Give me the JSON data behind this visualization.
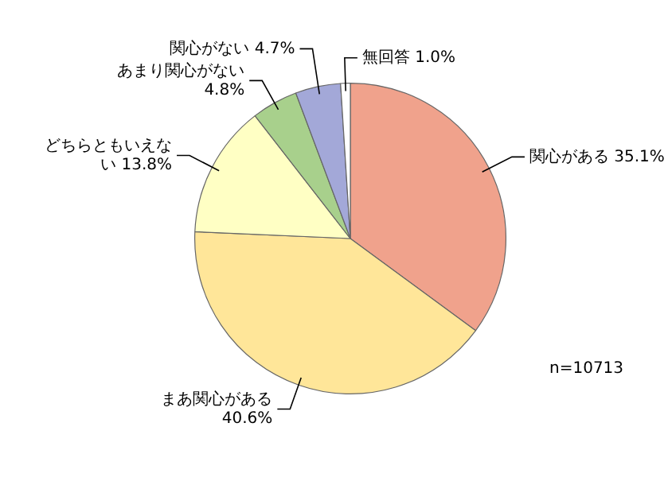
{
  "chart_data": {
    "type": "pie",
    "categories": [
      "関心がある",
      "まあ関心がある",
      "どちらともいえない",
      "あまり関心がない",
      "関心がない",
      "無回答"
    ],
    "values": [
      35.1,
      40.6,
      13.8,
      4.8,
      4.7,
      1.0
    ],
    "value_labels": [
      "35.1%",
      "40.6%",
      "13.8%",
      "4.8%",
      "4.7%",
      "1.0%"
    ],
    "colors": [
      "#f0a28c",
      "#ffe699",
      "#ffffc4",
      "#a8d08c",
      "#a3a8d8",
      "#ffffff"
    ],
    "annotations": [
      "n=10713"
    ],
    "legend": false
  }
}
